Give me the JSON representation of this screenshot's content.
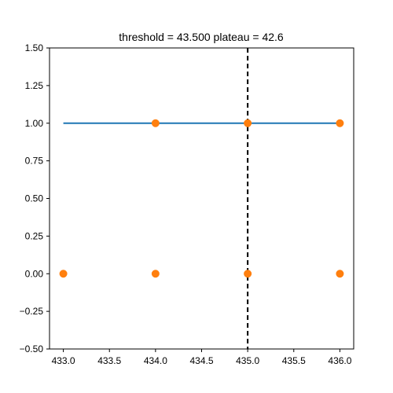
{
  "chart_data": {
    "type": "scatter",
    "title": "threshold = 43.500 plateau = 42.6",
    "xlabel": "",
    "ylabel": "",
    "xlim": [
      432.85,
      436.15
    ],
    "ylim": [
      -0.5,
      1.5
    ],
    "x_ticks": [
      433.0,
      433.5,
      434.0,
      434.5,
      435.0,
      435.5,
      436.0
    ],
    "x_tick_labels": [
      "433.0",
      "433.5",
      "434.0",
      "434.5",
      "435.0",
      "435.5",
      "436.0"
    ],
    "y_ticks": [
      -0.5,
      -0.25,
      0.0,
      0.25,
      0.5,
      0.75,
      1.0,
      1.25,
      1.5
    ],
    "y_tick_labels": [
      "−0.50",
      "−0.25",
      "0.00",
      "0.25",
      "0.50",
      "0.75",
      "1.00",
      "1.25",
      "1.50"
    ],
    "grid": false,
    "threshold_line": {
      "x": 435.0,
      "style": "dashed",
      "color": "#000000"
    },
    "fit_line": {
      "x": [
        433.0,
        436.0
      ],
      "y": [
        1.0,
        1.0
      ],
      "color": "#1f77b4"
    },
    "points": {
      "color": "#ff7f0e",
      "x": [
        433.0,
        434.0,
        434.0,
        435.0,
        435.0,
        436.0,
        436.0
      ],
      "y": [
        0.0,
        0.0,
        1.0,
        0.0,
        1.0,
        0.0,
        1.0
      ]
    }
  }
}
